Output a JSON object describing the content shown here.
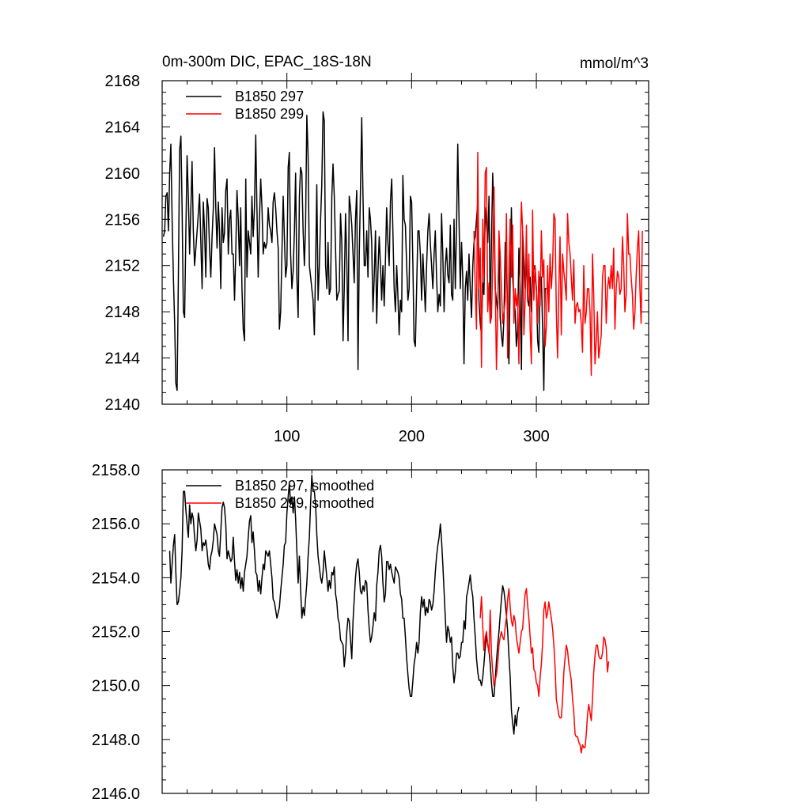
{
  "chart_data": [
    {
      "type": "line",
      "title": "0m-300m DIC, EPAC_18S-18N",
      "units": "mmol/m^3",
      "xlim": [
        0,
        390
      ],
      "ylim": [
        2140,
        2168
      ],
      "xticks": [
        100,
        200,
        300
      ],
      "yticks": [
        2140,
        2144,
        2148,
        2152,
        2156,
        2160,
        2164,
        2168
      ],
      "ytick_format": "int",
      "show_xtick_labels": true,
      "legend": "top-left",
      "grid": false,
      "series": [
        {
          "name": "B1850 297",
          "color": "#000000",
          "x_start": 1,
          "values": [
            2154.5,
            2155,
            2158,
            2158.3,
            2155,
            2160,
            2162.5,
            2156,
            2151,
            2147,
            2141.8,
            2141.2,
            2151,
            2162,
            2163.2,
            2157,
            2148,
            2147.5,
            2155,
            2161.5,
            2158,
            2153,
            2157,
            2161,
            2155,
            2152,
            2153.5,
            2155,
            2156.5,
            2158.2,
            2154,
            2150,
            2157.5,
            2155,
            2151,
            2157.8,
            2157,
            2153.5,
            2151,
            2154.5,
            2157,
            2162.2,
            2157,
            2153.5,
            2157.5,
            2155,
            2150,
            2157,
            2154,
            2154.8,
            2158.5,
            2159.5,
            2153,
            2156,
            2156.8,
            2153,
            2153,
            2149,
            2153,
            2158.5,
            2156,
            2152,
            2157,
            2150,
            2146.5,
            2145.5,
            2159.5,
            2151,
            2155,
            2154,
            2153,
            2158,
            2154.5,
            2157,
            2163.3,
            2157,
            2151,
            2156,
            2159.5,
            2157,
            2153,
            2154,
            2153.5,
            2154,
            2157,
            2155.5,
            2155,
            2154,
            2157.5,
            2158.3,
            2157,
            2155,
            2153.5,
            2146.5,
            2148,
            2153,
            2158,
            2154.5,
            2151,
            2152,
            2160.5,
            2161.8,
            2153,
            2150,
            2151.5,
            2155,
            2160,
            2151,
            2147.5,
            2158,
            2160.5,
            2160,
            2155,
            2152,
            2155.5,
            2165,
            2161.5,
            2152,
            2151,
            2150,
            2149,
            2146,
            2152,
            2159,
            2149,
            2152,
            2156,
            2159,
            2165.3,
            2164.5,
            2152,
            2150,
            2154,
            2149.5,
            2150,
            2158,
            2160.8,
            2158,
            2153.5,
            2149,
            2149.5,
            2149.8,
            2156.5,
            2154,
            2145.5,
            2150,
            2156.5,
            2152.5,
            2145.5,
            2158,
            2157,
            2155.5,
            2153,
            2150.5,
            2156,
            2158.5,
            2143,
            2153,
            2158.5,
            2164.8,
            2158,
            2152,
            2152,
            2155,
            2151,
            2157,
            2156,
            2154,
            2148,
            2151,
            2155,
            2147,
            2151.5,
            2154.5,
            2152,
            2149,
            2152,
            2148.5,
            2152.5,
            2157,
            2154,
            2152,
            2157.5,
            2159.5,
            2155,
            2150,
            2148,
            2152,
            2149.5,
            2146,
            2149,
            2148,
            2159.8,
            2156,
            2155.5,
            2152,
            2149,
            2150,
            2158,
            2157.5,
            2152,
            2145.5,
            2145,
            2150,
            2155,
            2155,
            2153,
            2149,
            2153,
            2150.5,
            2148,
            2152,
            2155,
            2156.5,
            2154,
            2152,
            2150,
            2153,
            2155,
            2151,
            2148,
            2149.5,
            2148.5,
            2156.5,
            2153,
            2148,
            2152,
            2153.5,
            2151.2,
            2150.5,
            2155.5,
            2149.5,
            2149,
            2156,
            2150,
            2155.5,
            2162.5,
            2156,
            2150,
            2154,
            2151,
            2143.5,
            2150,
            2151.5,
            2149,
            2153,
            2150,
            2147.5,
            2152,
            2154,
            2154.5,
            2156,
            2157.5,
            2149,
            2147,
            2146,
            2150.5,
            2149.5,
            2157,
            2155.5,
            2154,
            2158,
            2147.5,
            2154,
            2160,
            2156,
            2150,
            2149,
            2148,
            2153.5,
            2147.5,
            2146,
            2145,
            2147.5,
            2154,
            2152.5,
            2148,
            2143.5,
            2151,
            2157,
            2151,
            2149,
            2148,
            2145,
            2146.5,
            2153.5,
            2150,
            2143,
            2155,
            2152.5,
            2150,
            2153,
            2149,
            2148.5,
            2151,
            2148,
            2151,
            2152,
            2151.5,
            2150,
            2145.5,
            2144.5,
            2151,
            2151,
            2146.5,
            2141.2,
            2150,
            2150
          ]
        },
        {
          "name": "B1850 299",
          "color": "#ff0000",
          "x_start": 250,
          "values": [
            2155,
            2150,
            2146.5,
            2161.8,
            2150,
            2153.5,
            2143.2,
            2156,
            2151,
            2160,
            2160.5,
            2148,
            2150.5,
            2147,
            2147.5,
            2152,
            2158.8,
            2151,
            2143,
            2148,
            2155,
            2153,
            2150,
            2147,
            2148,
            2149,
            2156.5,
            2144,
            2152,
            2156,
            2151,
            2155.5,
            2147,
            2150,
            2148.5,
            2149.5,
            2143.5,
            2153,
            2157.5,
            2155,
            2146,
            2149,
            2155.5,
            2149,
            2153,
            2146.5,
            2143.5,
            2156.8,
            2149,
            2152,
            2150,
            2147,
            2151.5,
            2148.5,
            2155,
            2151,
            2152.5,
            2145,
            2146.8,
            2152,
            2148,
            2153,
            2150,
            2152,
            2156.5,
            2156,
            2148,
            2144,
            2150,
            2154.5,
            2146,
            2153,
            2151.5,
            2150.5,
            2149,
            2156.5,
            2154,
            2153,
            2151,
            2149,
            2152.5,
            2147,
            2148.5,
            2148.8,
            2148,
            2148.2,
            2147,
            2144.5,
            2152,
            2147,
            2148,
            2150,
            2150,
            2148,
            2142.5,
            2153,
            2149.5,
            2143.5,
            2145.5,
            2148,
            2144,
            2145,
            2146,
            2151,
            2152,
            2152,
            2147,
            2150,
            2151,
            2150,
            2152,
            2150,
            2153.5,
            2146.5,
            2150,
            2151.5,
            2151,
            2149.5,
            2150,
            2154.5,
            2152,
            2148,
            2149.5,
            2156.5,
            2153,
            2153,
            2151,
            2149.5,
            2146.5,
            2148,
            2151,
            2153.5,
            2155,
            2150,
            2147,
            2155
          ]
        }
      ]
    },
    {
      "type": "line",
      "title": "",
      "xlim": [
        0,
        390
      ],
      "ylim": [
        2146,
        2158
      ],
      "xticks": [
        100,
        200,
        300
      ],
      "yticks": [
        2146,
        2148,
        2150,
        2152,
        2154,
        2156,
        2158
      ],
      "ytick_format": "one_decimal",
      "show_xtick_labels": false,
      "legend": "top-left",
      "grid": false,
      "series": [
        {
          "name": "B1850 297, smoothed",
          "color": "#000000",
          "x_start": 6,
          "values": [
            2155,
            2153.8,
            2154.5,
            2155.2,
            2155.6,
            2154.2,
            2153,
            2153.1,
            2153.5,
            2154,
            2155,
            2157.2,
            2157.2,
            2156.5,
            2156,
            2155.5,
            2156.7,
            2156,
            2156.4,
            2156.2,
            2155.5,
            2155,
            2155.4,
            2156.4,
            2156.1,
            2155.8,
            2155,
            2155.3,
            2155.2,
            2155.4,
            2155,
            2154.5,
            2154.3,
            2154.8,
            2155,
            2155.4,
            2156,
            2155.8,
            2155.6,
            2155,
            2154.8,
            2155.7,
            2156.6,
            2156.8,
            2156.6,
            2156,
            2154.7,
            2155,
            2154.8,
            2154.6,
            2154.7,
            2155.5,
            2154.6,
            2153.9,
            2154.3,
            2153.8,
            2154.2,
            2153.6,
            2154,
            2153.5,
            2154.2,
            2154.5,
            2154.8,
            2155.5,
            2156.1,
            2156.3,
            2155.3,
            2155.7,
            2155,
            2154.2,
            2154.1,
            2153.5,
            2153.9,
            2153.4,
            2154,
            2154.5,
            2154.3,
            2155,
            2154.9,
            2154.8,
            2155,
            2154.5,
            2154,
            2153.2,
            2153.1,
            2152.8,
            2152.5,
            2152.7,
            2152.9,
            2153.5,
            2154,
            2154.5,
            2155.2,
            2155.3,
            2156.4,
            2157,
            2157.5,
            2156.7,
            2157,
            2156.4,
            2157,
            2156.2,
            2155,
            2153.8,
            2154.8,
            2153.6,
            2152.5,
            2152.9,
            2152.6,
            2153.2,
            2153.8,
            2154.8,
            2155.5,
            2156.8,
            2157.8,
            2157.2,
            2157.2,
            2156.7,
            2155.6,
            2154.8,
            2154.4,
            2154,
            2153.8,
            2154.2,
            2155,
            2154.5,
            2154,
            2153.5,
            2153.9,
            2153.6,
            2154.2,
            2154.1,
            2154.4,
            2153.4,
            2153.1,
            2152.5,
            2152.3,
            2151.7,
            2151.6,
            2151.5,
            2150.7,
            2151.2,
            2152,
            2152.5,
            2152.4,
            2151.7,
            2151,
            2152.4,
            2153.2,
            2154,
            2154.5,
            2154.7,
            2154.2,
            2153.5,
            2153.4,
            2153.7,
            2153.5,
            2153.9,
            2153.8,
            2152.8,
            2152.1,
            2151.6,
            2151.8,
            2152.2,
            2152.7,
            2152.4,
            2153.7,
            2154.2,
            2155,
            2155.2,
            2154.8,
            2153.8,
            2153.1,
            2153.4,
            2154.6,
            2154.6,
            2154.3,
            2154.5,
            2154.2,
            2154,
            2153.8,
            2154.4,
            2154.3,
            2154.2,
            2154,
            2153.4,
            2153.2,
            2152.5,
            2152.5,
            2151.8,
            2151,
            2150.4,
            2149.9,
            2149.6,
            2149.6,
            2150.2,
            2150.8,
            2151.1,
            2151.6,
            2151.2,
            2151.6,
            2152.7,
            2153.3,
            2152.9,
            2153.2,
            2152.6,
            2152.9,
            2152.7,
            2153.2,
            2153.1,
            2152.8,
            2153,
            2153.5,
            2154.2,
            2154.8,
            2155.2,
            2155.5,
            2156,
            2155.4,
            2154.5,
            2153.5,
            2152.5,
            2151.6,
            2152.2,
            2152,
            2151.6,
            2151.8,
            2150.7,
            2150.1,
            2150.5,
            2151.2,
            2151.2,
            2151,
            2151.1,
            2151.6,
            2151.6,
            2152.4,
            2152.1,
            2153.3,
            2153.5,
            2153.8,
            2154.1,
            2153.6,
            2153.3,
            2152.5,
            2151.8,
            2151,
            2150.5,
            2150.2,
            2150.2,
            2150,
            2150.3,
            2150.8,
            2151.4,
            2151.9,
            2151.5,
            2151.3,
            2150.8,
            2150.1,
            2149.6,
            2149.6,
            2150.2,
            2150.9,
            2151.5,
            2152,
            2152.6,
            2153.2,
            2153.7,
            2153.5,
            2153.1,
            2152.6,
            2152,
            2151.1,
            2150.3,
            2149.1,
            2148.6,
            2148.2,
            2148.9,
            2148.5,
            2149,
            2149.2
          ]
        },
        {
          "name": "B1850 299, smoothed",
          "color": "#ff0000",
          "x_start": 255,
          "values": [
            2152.5,
            2153.3,
            2152.2,
            2151.3,
            2151.8,
            2152,
            2151.5,
            2151.2,
            2152.8,
            2151.2,
            2150.5,
            2150,
            2150.2,
            2150.4,
            2150.8,
            2151.5,
            2151.8,
            2152,
            2151.8,
            2151.7,
            2152.2,
            2152.5,
            2153.2,
            2153.6,
            2152.9,
            2152.4,
            2152.2,
            2152.6,
            2152.4,
            2151.8,
            2151.5,
            2151.2,
            2151.6,
            2152,
            2152.1,
            2152.8,
            2153.4,
            2153.6,
            2153,
            2152.5,
            2151.8,
            2151.2,
            2151.4,
            2150.6,
            2150.5,
            2150.1,
            2150,
            2149.6,
            2150.3,
            2150.8,
            2151.6,
            2152.8,
            2153.1,
            2152.5,
            2152.7,
            2153.1,
            2152.8,
            2152.5,
            2152.1,
            2151.5,
            2150.7,
            2149.5,
            2149.2,
            2148.9,
            2148.8,
            2148.8,
            2149.5,
            2150.5,
            2151,
            2151.5,
            2151.3,
            2150.8,
            2150.5,
            2150.2,
            2149.5,
            2149,
            2148.2,
            2148.1,
            2148.1,
            2147.9,
            2147.8,
            2147.5,
            2147.8,
            2147.7,
            2147.7,
            2148.2,
            2148.9,
            2149.3,
            2149,
            2148.7,
            2149.5,
            2150.5,
            2151.1,
            2151.5,
            2151.5,
            2151.1,
            2151,
            2151,
            2151.2,
            2151.8,
            2151.7,
            2151.4,
            2150.5,
            2150.9
          ]
        }
      ]
    }
  ]
}
